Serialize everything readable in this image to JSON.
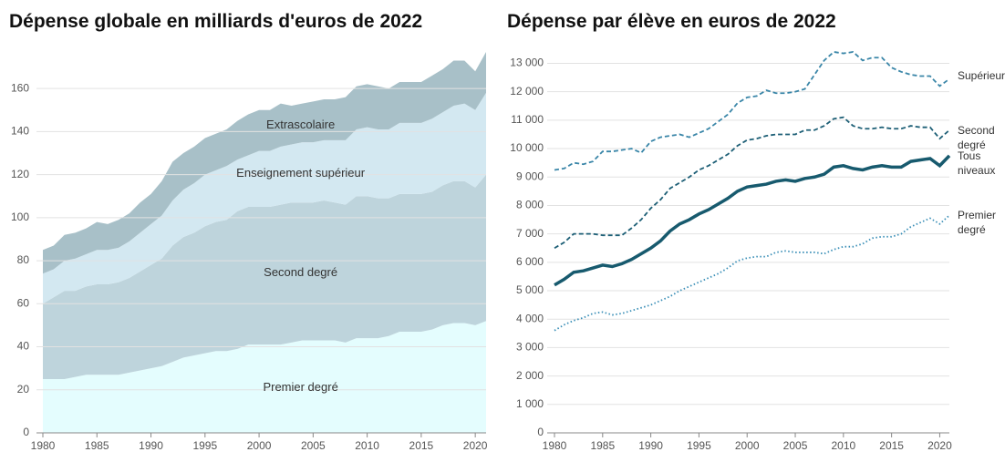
{
  "chart_data": [
    {
      "type": "area",
      "title": "Dépense globale en milliards d'euros de 2022",
      "x": [
        1980,
        1981,
        1982,
        1983,
        1984,
        1985,
        1986,
        1987,
        1988,
        1989,
        1990,
        1991,
        1992,
        1993,
        1994,
        1995,
        1996,
        1997,
        1998,
        1999,
        2000,
        2001,
        2002,
        2003,
        2004,
        2005,
        2006,
        2007,
        2008,
        2009,
        2010,
        2011,
        2012,
        2013,
        2014,
        2015,
        2016,
        2017,
        2018,
        2019,
        2020,
        2021
      ],
      "series": [
        {
          "name": "Premier degré",
          "color": "#e4fdfe",
          "values": [
            25,
            25,
            25,
            26,
            27,
            27,
            27,
            27,
            28,
            29,
            30,
            31,
            33,
            35,
            36,
            37,
            38,
            38,
            39,
            41,
            41,
            41,
            41,
            42,
            43,
            43,
            43,
            43,
            42,
            44,
            44,
            44,
            45,
            47,
            47,
            47,
            48,
            50,
            51,
            51,
            50,
            52
          ]
        },
        {
          "name": "Second degré",
          "color": "#bed4dc",
          "values": [
            35,
            38,
            41,
            40,
            41,
            42,
            42,
            43,
            44,
            46,
            48,
            50,
            54,
            56,
            57,
            59,
            60,
            61,
            64,
            64,
            64,
            64,
            65,
            65,
            64,
            64,
            65,
            64,
            64,
            66,
            66,
            65,
            64,
            64,
            64,
            64,
            64,
            65,
            66,
            66,
            64,
            68
          ]
        },
        {
          "name": "Enseignement supérieur",
          "color": "#d3e8f1",
          "values": [
            14,
            13,
            14,
            15,
            15,
            16,
            16,
            16,
            17,
            18,
            19,
            20,
            21,
            22,
            23,
            24,
            24,
            25,
            24,
            24,
            26,
            26,
            27,
            27,
            28,
            28,
            28,
            29,
            30,
            31,
            32,
            32,
            32,
            33,
            33,
            33,
            34,
            34,
            35,
            36,
            36,
            38
          ]
        },
        {
          "name": "Extrascolaire",
          "color": "#a8c0c8",
          "values": [
            11,
            11,
            12,
            12,
            12,
            13,
            12,
            13,
            13,
            14,
            14,
            16,
            18,
            17,
            17,
            17,
            17,
            17,
            18,
            19,
            19,
            19,
            20,
            18,
            18,
            19,
            19,
            19,
            20,
            20,
            20,
            20,
            19,
            19,
            19,
            19,
            20,
            20,
            21,
            20,
            18,
            19
          ]
        }
      ],
      "xlim": [
        1980,
        2021
      ],
      "xticks": [
        1980,
        1985,
        1990,
        1995,
        2000,
        2005,
        2010,
        2015,
        2020
      ],
      "ylim": [
        0,
        177
      ],
      "yticks": [
        0,
        20,
        40,
        60,
        80,
        100,
        120,
        140,
        160
      ],
      "grid": true
    },
    {
      "type": "line",
      "title": "Dépense par élève en euros de 2022",
      "x": [
        1980,
        1981,
        1982,
        1983,
        1984,
        1985,
        1986,
        1987,
        1988,
        1989,
        1990,
        1991,
        1992,
        1993,
        1994,
        1995,
        1996,
        1997,
        1998,
        1999,
        2000,
        2001,
        2002,
        2003,
        2004,
        2005,
        2006,
        2007,
        2008,
        2009,
        2010,
        2011,
        2012,
        2013,
        2014,
        2015,
        2016,
        2017,
        2018,
        2019,
        2020,
        2021
      ],
      "series": [
        {
          "name": "Supérieur",
          "color": "#3a86a8",
          "style": "dashed",
          "values": [
            9250,
            9300,
            9500,
            9450,
            9550,
            9900,
            9900,
            9950,
            10000,
            9850,
            10250,
            10400,
            10450,
            10500,
            10400,
            10550,
            10700,
            10950,
            11200,
            11600,
            11800,
            11850,
            12050,
            11950,
            11950,
            12000,
            12100,
            12600,
            13100,
            13400,
            13350,
            13400,
            13100,
            13200,
            13200,
            12850,
            12700,
            12600,
            12550,
            12550,
            12200,
            12450
          ]
        },
        {
          "name": "Second degré",
          "color": "#1d5f76",
          "style": "dashed",
          "values": [
            6500,
            6700,
            7000,
            7000,
            7000,
            6950,
            6950,
            6950,
            7200,
            7500,
            7900,
            8200,
            8600,
            8800,
            9000,
            9250,
            9400,
            9600,
            9800,
            10100,
            10300,
            10350,
            10450,
            10500,
            10500,
            10500,
            10650,
            10650,
            10800,
            11050,
            11100,
            10800,
            10700,
            10700,
            10750,
            10700,
            10700,
            10800,
            10750,
            10750,
            10350,
            10650
          ]
        },
        {
          "name": "Tous niveaux",
          "color": "#175a6e",
          "style": "solid",
          "values": [
            5200,
            5400,
            5650,
            5700,
            5800,
            5900,
            5850,
            5950,
            6100,
            6300,
            6500,
            6750,
            7100,
            7350,
            7500,
            7700,
            7850,
            8050,
            8250,
            8500,
            8650,
            8700,
            8750,
            8850,
            8900,
            8850,
            8950,
            9000,
            9100,
            9350,
            9400,
            9300,
            9250,
            9350,
            9400,
            9350,
            9350,
            9550,
            9600,
            9650,
            9400,
            9750
          ]
        },
        {
          "name": "Premier degré",
          "color": "#3a8fb7",
          "style": "dotted",
          "values": [
            3600,
            3800,
            3950,
            4050,
            4200,
            4250,
            4150,
            4200,
            4300,
            4400,
            4500,
            4650,
            4800,
            5000,
            5150,
            5300,
            5450,
            5600,
            5800,
            6050,
            6150,
            6200,
            6200,
            6350,
            6400,
            6350,
            6350,
            6350,
            6300,
            6450,
            6550,
            6550,
            6650,
            6850,
            6900,
            6900,
            7000,
            7250,
            7400,
            7550,
            7350,
            7650
          ]
        }
      ],
      "xlim": [
        1980,
        2021
      ],
      "xticks": [
        1980,
        1985,
        1990,
        1995,
        2000,
        2005,
        2010,
        2015,
        2020
      ],
      "ylim": [
        0,
        13400
      ],
      "yticks": [
        0,
        {
          "value": 1000,
          "label": "1 000"
        },
        {
          "value": 2000,
          "label": "2 000"
        },
        {
          "value": 3000,
          "label": "3 000"
        },
        {
          "value": 4000,
          "label": "4 000"
        },
        {
          "value": 5000,
          "label": "5 000"
        },
        {
          "value": 6000,
          "label": "6 000"
        },
        {
          "value": 7000,
          "label": "7 000"
        },
        {
          "value": 8000,
          "label": "8 000"
        },
        {
          "value": 9000,
          "label": "9 000"
        },
        {
          "value": 10000,
          "label": "10 000"
        },
        {
          "value": 11000,
          "label": "11 000"
        },
        {
          "value": 12000,
          "label": "12 000"
        },
        {
          "value": 13000,
          "label": "13 000"
        }
      ],
      "grid": true
    }
  ]
}
